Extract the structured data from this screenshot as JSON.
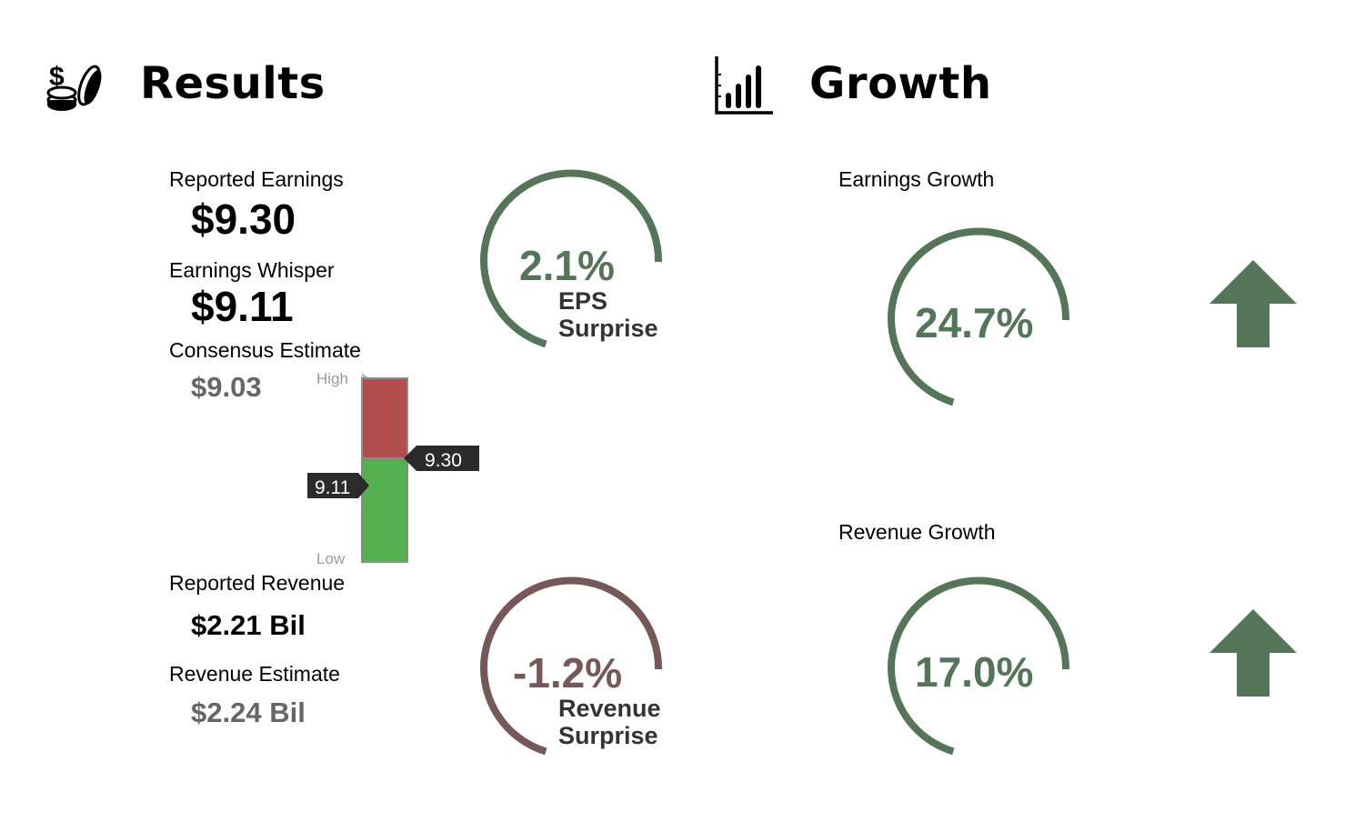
{
  "colors": {
    "positive": "#557558",
    "negative": "#755857",
    "bar_high": "#b14d4b",
    "bar_low": "#53b04f",
    "tag_bg": "#2b2b2b",
    "muted_text": "#666666"
  },
  "results": {
    "title": "Results",
    "icon": "coins-dollar-icon",
    "reported_earnings": {
      "label": "Reported Earnings",
      "value": "$9.30"
    },
    "earnings_whisper": {
      "label": "Earnings Whisper",
      "value": "$9.11"
    },
    "consensus_estimate": {
      "label": "Consensus Estimate",
      "value": "$9.03"
    },
    "estimate_range": {
      "high_label": "High",
      "low_label": "Low",
      "reported_tag": "9.30",
      "whisper_tag": "9.11",
      "reported_position": 0.56,
      "whisper_position": 0.41
    },
    "eps_surprise": {
      "value": "2.1%",
      "caption_line1": "EPS",
      "caption_line2": "Surprise",
      "tone": "positive"
    },
    "reported_revenue": {
      "label": "Reported Revenue",
      "value": "$2.21 Bil"
    },
    "revenue_estimate": {
      "label": "Revenue Estimate",
      "value": "$2.24 Bil"
    },
    "revenue_surprise": {
      "value": "-1.2%",
      "caption_line1": "Revenue",
      "caption_line2": "Surprise",
      "tone": "negative"
    }
  },
  "growth": {
    "title": "Growth",
    "icon": "bar-chart-icon",
    "earnings_growth": {
      "label": "Earnings Growth",
      "value": "24.7%",
      "direction": "up",
      "tone": "positive"
    },
    "revenue_growth": {
      "label": "Revenue Growth",
      "value": "17.0%",
      "direction": "up",
      "tone": "positive"
    }
  }
}
